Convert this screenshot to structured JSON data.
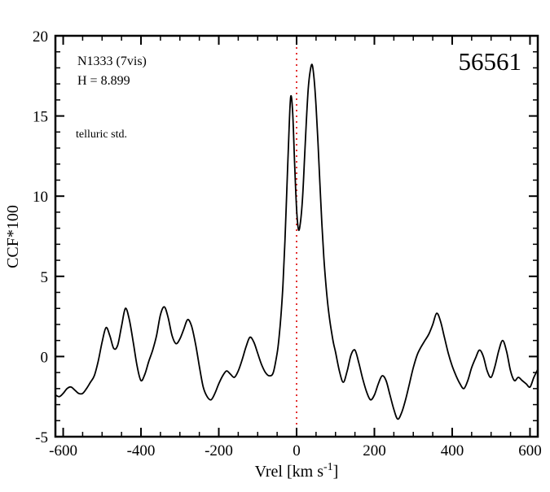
{
  "window": {
    "background": "#ffffff"
  },
  "annotations": {
    "object": "N1333 (7vis)",
    "magnitude": "H = 8.899",
    "note": "telluric std.",
    "note_color": "#6a0dad",
    "epoch": "56561"
  },
  "axes": {
    "ylabel": "CCF*100",
    "xlabel_prefix": "Vrel [km s",
    "xlabel_sup": "-1",
    "xlabel_suffix": "]"
  },
  "chart_data": {
    "type": "line",
    "title": "",
    "xlabel": "Vrel [km s^-1]",
    "ylabel": "CCF*100",
    "xlim": [
      -620,
      620
    ],
    "ylim": [
      -5,
      20
    ],
    "xticks": [
      -600,
      -400,
      -200,
      0,
      200,
      400,
      600
    ],
    "yticks": [
      -5,
      0,
      5,
      10,
      15,
      20
    ],
    "x_minor_step": 50,
    "y_minor_step": 1,
    "grid": false,
    "legend": "none",
    "frame_color": "#000000",
    "reference_line": {
      "x": 0,
      "color": "#dd0000",
      "style": "dotted"
    },
    "series": [
      {
        "name": "CCF",
        "color": "#000000",
        "points": [
          [
            -620,
            -2.4
          ],
          [
            -610,
            -2.5
          ],
          [
            -600,
            -2.3
          ],
          [
            -590,
            -2.0
          ],
          [
            -580,
            -1.9
          ],
          [
            -570,
            -2.1
          ],
          [
            -560,
            -2.3
          ],
          [
            -550,
            -2.3
          ],
          [
            -540,
            -2.0
          ],
          [
            -530,
            -1.6
          ],
          [
            -520,
            -1.2
          ],
          [
            -510,
            -0.3
          ],
          [
            -500,
            0.9
          ],
          [
            -490,
            1.8
          ],
          [
            -480,
            1.3
          ],
          [
            -470,
            0.5
          ],
          [
            -460,
            0.7
          ],
          [
            -450,
            1.9
          ],
          [
            -440,
            3.0
          ],
          [
            -430,
            2.3
          ],
          [
            -420,
            0.9
          ],
          [
            -410,
            -0.6
          ],
          [
            -400,
            -1.5
          ],
          [
            -390,
            -1.1
          ],
          [
            -380,
            -0.3
          ],
          [
            -370,
            0.4
          ],
          [
            -360,
            1.3
          ],
          [
            -350,
            2.6
          ],
          [
            -340,
            3.1
          ],
          [
            -330,
            2.4
          ],
          [
            -320,
            1.3
          ],
          [
            -310,
            0.8
          ],
          [
            -300,
            1.1
          ],
          [
            -290,
            1.7
          ],
          [
            -280,
            2.3
          ],
          [
            -270,
            1.9
          ],
          [
            -260,
            0.8
          ],
          [
            -250,
            -0.6
          ],
          [
            -240,
            -1.9
          ],
          [
            -230,
            -2.5
          ],
          [
            -220,
            -2.7
          ],
          [
            -210,
            -2.3
          ],
          [
            -200,
            -1.7
          ],
          [
            -190,
            -1.2
          ],
          [
            -180,
            -0.9
          ],
          [
            -170,
            -1.1
          ],
          [
            -160,
            -1.3
          ],
          [
            -150,
            -0.9
          ],
          [
            -140,
            -0.2
          ],
          [
            -130,
            0.6
          ],
          [
            -120,
            1.2
          ],
          [
            -110,
            0.9
          ],
          [
            -100,
            0.2
          ],
          [
            -90,
            -0.5
          ],
          [
            -80,
            -1.0
          ],
          [
            -70,
            -1.2
          ],
          [
            -60,
            -1.0
          ],
          [
            -50,
            0.2
          ],
          [
            -45,
            1.2
          ],
          [
            -40,
            2.6
          ],
          [
            -35,
            4.5
          ],
          [
            -30,
            7.2
          ],
          [
            -25,
            10.5
          ],
          [
            -20,
            13.8
          ],
          [
            -15,
            16.2
          ],
          [
            -10,
            15.2
          ],
          [
            -5,
            12.0
          ],
          [
            0,
            9.2
          ],
          [
            5,
            7.9
          ],
          [
            10,
            8.4
          ],
          [
            15,
            9.8
          ],
          [
            20,
            12.1
          ],
          [
            25,
            14.6
          ],
          [
            30,
            16.7
          ],
          [
            35,
            17.8
          ],
          [
            40,
            18.2
          ],
          [
            45,
            17.3
          ],
          [
            50,
            15.6
          ],
          [
            55,
            13.3
          ],
          [
            60,
            10.8
          ],
          [
            65,
            8.3
          ],
          [
            70,
            6.2
          ],
          [
            75,
            4.6
          ],
          [
            80,
            3.3
          ],
          [
            85,
            2.3
          ],
          [
            90,
            1.5
          ],
          [
            95,
            0.8
          ],
          [
            100,
            0.3
          ],
          [
            110,
            -0.9
          ],
          [
            120,
            -1.6
          ],
          [
            130,
            -0.9
          ],
          [
            140,
            0.1
          ],
          [
            150,
            0.4
          ],
          [
            160,
            -0.4
          ],
          [
            170,
            -1.4
          ],
          [
            180,
            -2.2
          ],
          [
            190,
            -2.7
          ],
          [
            200,
            -2.4
          ],
          [
            210,
            -1.7
          ],
          [
            220,
            -1.2
          ],
          [
            230,
            -1.5
          ],
          [
            240,
            -2.4
          ],
          [
            250,
            -3.3
          ],
          [
            260,
            -3.9
          ],
          [
            270,
            -3.5
          ],
          [
            280,
            -2.7
          ],
          [
            290,
            -1.7
          ],
          [
            300,
            -0.7
          ],
          [
            310,
            0.1
          ],
          [
            320,
            0.6
          ],
          [
            330,
            1.0
          ],
          [
            340,
            1.4
          ],
          [
            350,
            2.0
          ],
          [
            360,
            2.7
          ],
          [
            370,
            2.2
          ],
          [
            380,
            1.2
          ],
          [
            390,
            0.2
          ],
          [
            400,
            -0.6
          ],
          [
            410,
            -1.2
          ],
          [
            420,
            -1.7
          ],
          [
            430,
            -2.0
          ],
          [
            440,
            -1.5
          ],
          [
            450,
            -0.7
          ],
          [
            460,
            -0.1
          ],
          [
            470,
            0.4
          ],
          [
            480,
            0.0
          ],
          [
            490,
            -0.9
          ],
          [
            500,
            -1.3
          ],
          [
            510,
            -0.6
          ],
          [
            520,
            0.4
          ],
          [
            530,
            1.0
          ],
          [
            540,
            0.3
          ],
          [
            550,
            -0.9
          ],
          [
            560,
            -1.5
          ],
          [
            570,
            -1.3
          ],
          [
            580,
            -1.5
          ],
          [
            590,
            -1.7
          ],
          [
            600,
            -1.9
          ],
          [
            610,
            -1.3
          ],
          [
            620,
            -0.8
          ]
        ]
      }
    ]
  }
}
